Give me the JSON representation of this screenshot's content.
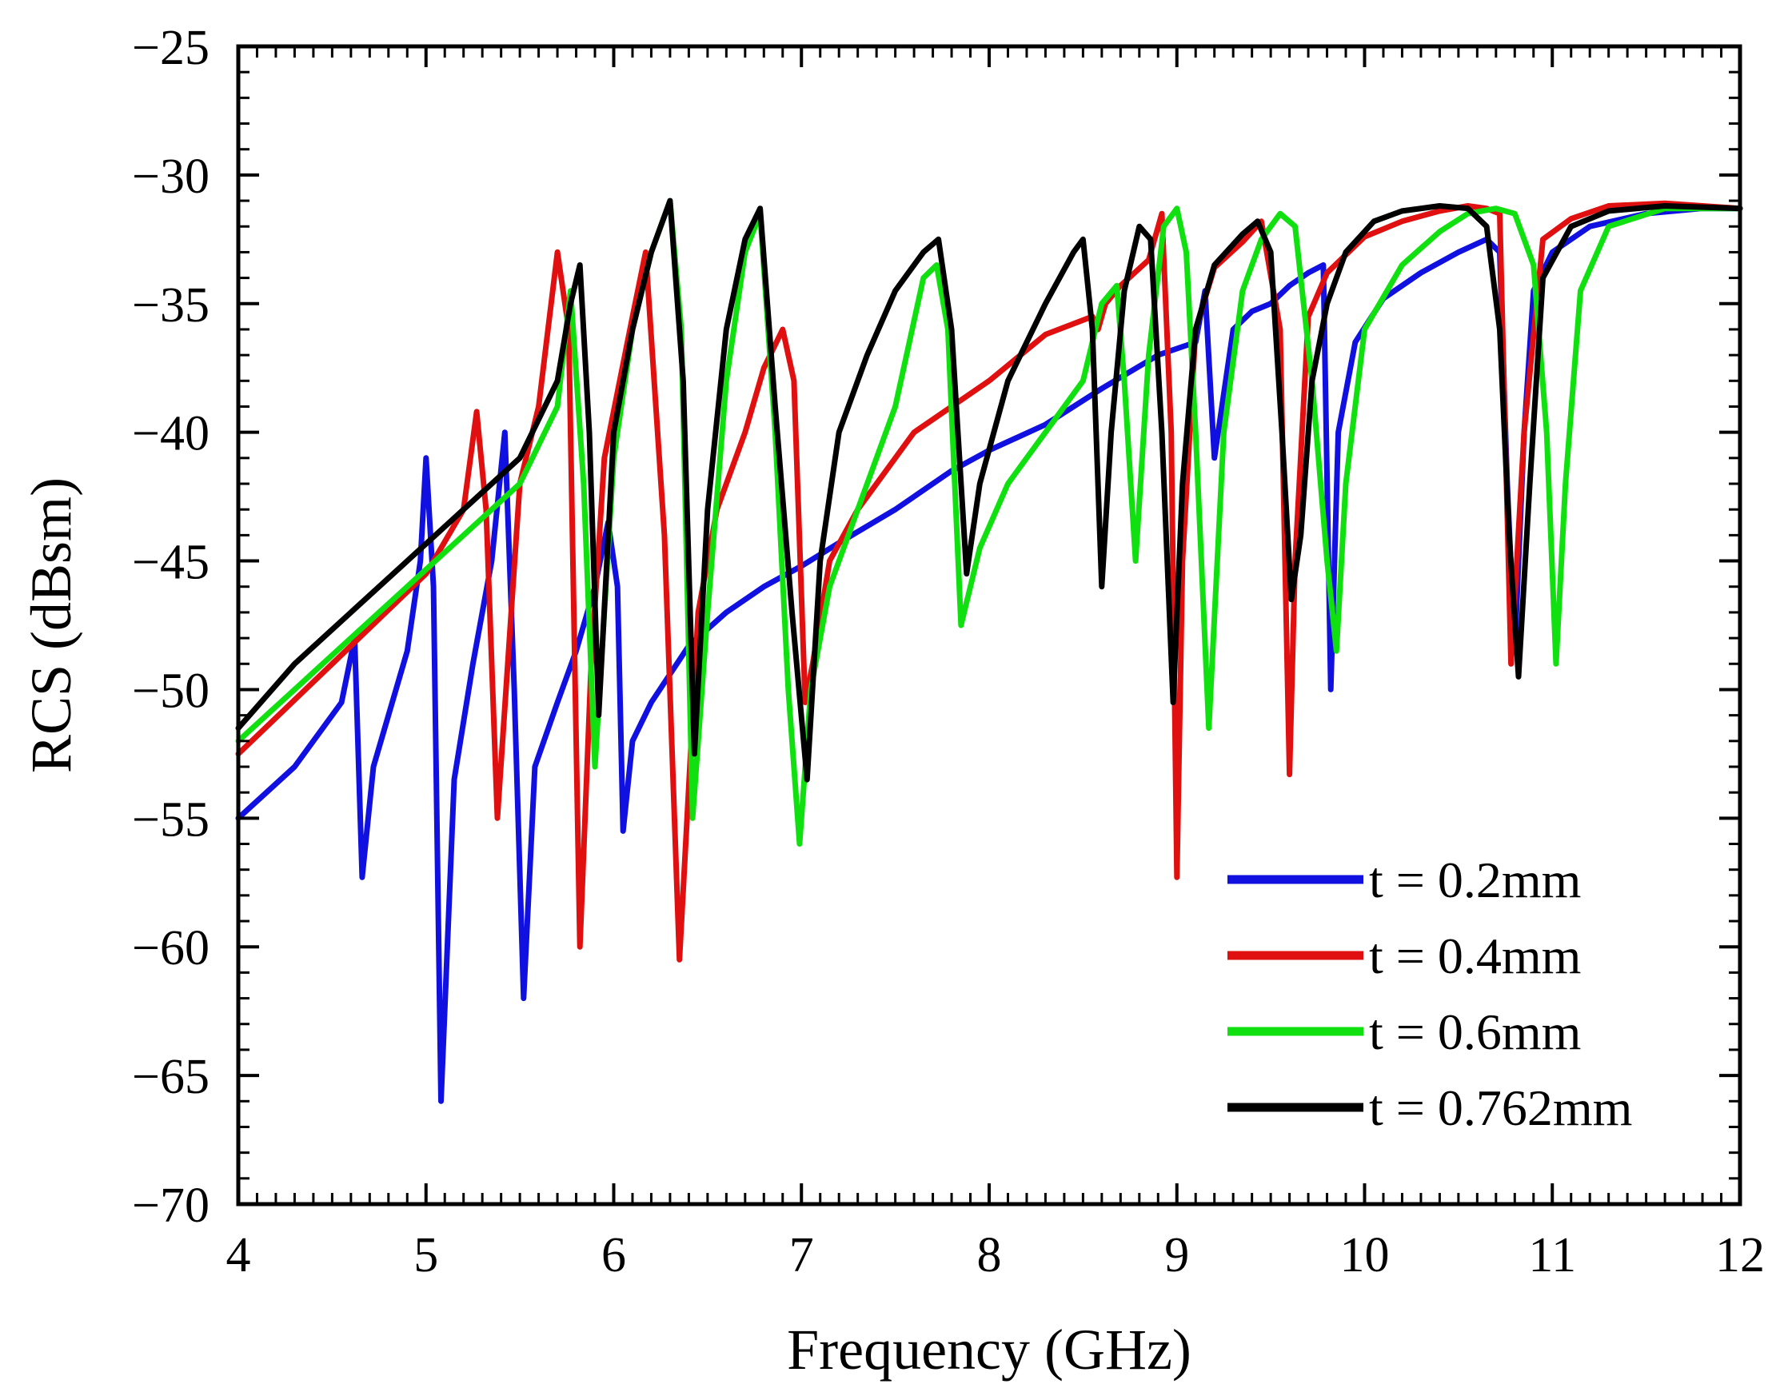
{
  "chart_data": {
    "type": "line",
    "title": "",
    "xlabel": "Frequency (GHz)",
    "ylabel": "RCS (dBsm)",
    "xlim": [
      4,
      12
    ],
    "ylim": [
      -70,
      -25
    ],
    "xticks": [
      4,
      5,
      6,
      7,
      8,
      9,
      10,
      11,
      12
    ],
    "yticks": [
      -25,
      -30,
      -35,
      -40,
      -45,
      -50,
      -55,
      -60,
      -65,
      -70
    ],
    "xtick_labels": [
      "4",
      "5",
      "6",
      "7",
      "8",
      "9",
      "10",
      "11",
      "12"
    ],
    "ytick_labels": [
      "−25",
      "−30",
      "−35",
      "−40",
      "−45",
      "−50",
      "−55",
      "−60",
      "−65",
      "−70"
    ],
    "grid": false,
    "legend_position": "bottom-right",
    "series": [
      {
        "name": "t = 0.2mm",
        "color": "#1010e0",
        "x": [
          4.0,
          4.3,
          4.55,
          4.62,
          4.66,
          4.72,
          4.8,
          4.9,
          4.97,
          5.0,
          5.04,
          5.08,
          5.15,
          5.25,
          5.35,
          5.42,
          5.47,
          5.52,
          5.58,
          5.7,
          5.8,
          5.9,
          5.97,
          6.02,
          6.05,
          6.1,
          6.2,
          6.4,
          6.6,
          6.8,
          7.0,
          7.2,
          7.5,
          7.8,
          8.0,
          8.3,
          8.6,
          8.9,
          9.1,
          9.15,
          9.2,
          9.3,
          9.4,
          9.5,
          9.6,
          9.7,
          9.78,
          9.82,
          9.86,
          9.95,
          10.1,
          10.3,
          10.5,
          10.65,
          10.72,
          10.76,
          10.8,
          10.85,
          10.9,
          11.0,
          11.2,
          11.5,
          11.8,
          12.0
        ],
        "y": [
          -55.0,
          -53.0,
          -50.5,
          -48.0,
          -57.3,
          -53.0,
          -51.0,
          -48.5,
          -45.0,
          -41.0,
          -46.0,
          -66.0,
          -53.5,
          -49.0,
          -45.0,
          -40.0,
          -50.0,
          -62.0,
          -53.0,
          -50.5,
          -48.5,
          -46.0,
          -43.5,
          -46.0,
          -55.5,
          -52.0,
          -50.5,
          -48.3,
          -47.0,
          -46.0,
          -45.2,
          -44.3,
          -43.0,
          -41.5,
          -40.7,
          -39.7,
          -38.3,
          -37.0,
          -36.5,
          -34.5,
          -41.0,
          -36.0,
          -35.3,
          -35.0,
          -34.3,
          -33.8,
          -33.5,
          -50.0,
          -40.0,
          -36.5,
          -34.8,
          -33.8,
          -33.0,
          -32.5,
          -33.0,
          -42.0,
          -48.5,
          -40.0,
          -34.5,
          -33.0,
          -32.0,
          -31.5,
          -31.3,
          -31.3
        ]
      },
      {
        "name": "t = 0.4mm",
        "color": "#e01010",
        "x": [
          4.0,
          4.5,
          5.0,
          5.2,
          5.27,
          5.32,
          5.38,
          5.5,
          5.6,
          5.65,
          5.7,
          5.76,
          5.82,
          5.88,
          5.95,
          6.1,
          6.17,
          6.27,
          6.35,
          6.45,
          6.55,
          6.7,
          6.8,
          6.9,
          6.96,
          7.02,
          7.06,
          7.15,
          7.3,
          7.6,
          8.0,
          8.3,
          8.55,
          8.58,
          8.62,
          8.7,
          8.85,
          8.92,
          8.97,
          9.0,
          9.03,
          9.1,
          9.2,
          9.35,
          9.45,
          9.55,
          9.6,
          9.63,
          9.7,
          9.8,
          10.0,
          10.2,
          10.4,
          10.55,
          10.65,
          10.72,
          10.78,
          10.85,
          10.95,
          11.1,
          11.3,
          11.6,
          12.0
        ],
        "y": [
          -52.5,
          -49.0,
          -45.5,
          -43.0,
          -39.2,
          -43.0,
          -55.0,
          -42.0,
          -39.0,
          -36.0,
          -33.0,
          -36.0,
          -60.0,
          -49.0,
          -41.0,
          -35.5,
          -33.0,
          -44.0,
          -60.5,
          -47.0,
          -43.0,
          -40.0,
          -37.5,
          -36.0,
          -38.0,
          -50.5,
          -49.0,
          -45.0,
          -43.0,
          -40.0,
          -38.0,
          -36.2,
          -35.5,
          -36.0,
          -35.0,
          -34.3,
          -33.3,
          -31.5,
          -40.0,
          -57.3,
          -45.0,
          -36.0,
          -33.6,
          -32.6,
          -31.8,
          -36.0,
          -53.3,
          -45.0,
          -35.5,
          -33.8,
          -32.4,
          -31.8,
          -31.4,
          -31.2,
          -31.3,
          -31.5,
          -49.0,
          -40.0,
          -32.5,
          -31.7,
          -31.2,
          -31.1,
          -31.3
        ]
      },
      {
        "name": "t = 0.6mm",
        "color": "#10e010",
        "x": [
          4.0,
          4.3,
          4.6,
          4.9,
          5.2,
          5.5,
          5.7,
          5.77,
          5.84,
          5.9,
          6.0,
          6.1,
          6.2,
          6.3,
          6.36,
          6.42,
          6.5,
          6.6,
          6.7,
          6.78,
          6.86,
          6.93,
          6.99,
          7.05,
          7.15,
          7.3,
          7.5,
          7.65,
          7.72,
          7.78,
          7.85,
          7.95,
          8.1,
          8.3,
          8.5,
          8.6,
          8.68,
          8.72,
          8.78,
          8.85,
          8.93,
          9.0,
          9.05,
          9.1,
          9.17,
          9.25,
          9.35,
          9.45,
          9.55,
          9.63,
          9.72,
          9.8,
          9.85,
          9.9,
          10.0,
          10.2,
          10.4,
          10.55,
          10.7,
          10.8,
          10.9,
          10.97,
          11.02,
          11.07,
          11.15,
          11.3,
          11.6,
          12.0
        ],
        "y": [
          -52.0,
          -50.0,
          -48.0,
          -46.0,
          -44.0,
          -42.0,
          -39.0,
          -34.5,
          -42.0,
          -53.0,
          -41.0,
          -36.0,
          -33.0,
          -31.0,
          -36.0,
          -55.0,
          -47.0,
          -38.0,
          -33.0,
          -31.5,
          -40.0,
          -50.0,
          -56.0,
          -50.0,
          -46.0,
          -43.0,
          -39.0,
          -34.0,
          -33.5,
          -36.0,
          -47.5,
          -44.5,
          -42.0,
          -40.0,
          -38.0,
          -35.0,
          -34.3,
          -38.0,
          -45.0,
          -37.0,
          -32.0,
          -31.3,
          -33.0,
          -40.0,
          -51.5,
          -40.0,
          -34.5,
          -32.5,
          -31.5,
          -32.0,
          -38.0,
          -45.0,
          -48.5,
          -42.0,
          -36.0,
          -33.5,
          -32.2,
          -31.5,
          -31.3,
          -31.5,
          -33.5,
          -40.0,
          -49.0,
          -42.0,
          -34.5,
          -32.0,
          -31.3,
          -31.3
        ]
      },
      {
        "name": "t = 0.762mm",
        "color": "#000000",
        "x": [
          4.0,
          4.3,
          4.6,
          4.9,
          5.2,
          5.5,
          5.7,
          5.77,
          5.82,
          5.87,
          5.92,
          6.0,
          6.1,
          6.2,
          6.3,
          6.37,
          6.43,
          6.5,
          6.6,
          6.7,
          6.78,
          6.86,
          6.95,
          7.03,
          7.1,
          7.2,
          7.35,
          7.5,
          7.65,
          7.73,
          7.8,
          7.88,
          7.95,
          8.1,
          8.3,
          8.45,
          8.5,
          8.55,
          8.6,
          8.65,
          8.72,
          8.8,
          8.86,
          8.92,
          8.98,
          9.03,
          9.1,
          9.2,
          9.35,
          9.43,
          9.5,
          9.56,
          9.61,
          9.66,
          9.72,
          9.8,
          9.9,
          10.05,
          10.2,
          10.4,
          10.55,
          10.65,
          10.72,
          10.77,
          10.82,
          10.88,
          10.95,
          11.1,
          11.3,
          11.6,
          12.0
        ],
        "y": [
          -51.5,
          -49.0,
          -47.0,
          -45.0,
          -43.0,
          -41.0,
          -38.0,
          -35.0,
          -33.5,
          -40.0,
          -51.0,
          -40.0,
          -36.0,
          -33.0,
          -31.0,
          -38.0,
          -52.5,
          -43.0,
          -36.0,
          -32.5,
          -31.3,
          -39.0,
          -47.0,
          -53.5,
          -45.0,
          -40.0,
          -37.0,
          -34.5,
          -33.0,
          -32.5,
          -36.0,
          -45.5,
          -42.0,
          -38.0,
          -35.0,
          -33.0,
          -32.5,
          -36.0,
          -46.0,
          -40.0,
          -34.5,
          -32.0,
          -32.5,
          -40.0,
          -50.5,
          -42.0,
          -36.0,
          -33.5,
          -32.3,
          -31.8,
          -33.0,
          -40.0,
          -46.5,
          -44.0,
          -38.0,
          -35.0,
          -33.0,
          -31.8,
          -31.4,
          -31.2,
          -31.3,
          -32.0,
          -36.0,
          -44.0,
          -49.5,
          -42.0,
          -34.0,
          -32.0,
          -31.4,
          -31.2,
          -31.3
        ]
      }
    ]
  }
}
